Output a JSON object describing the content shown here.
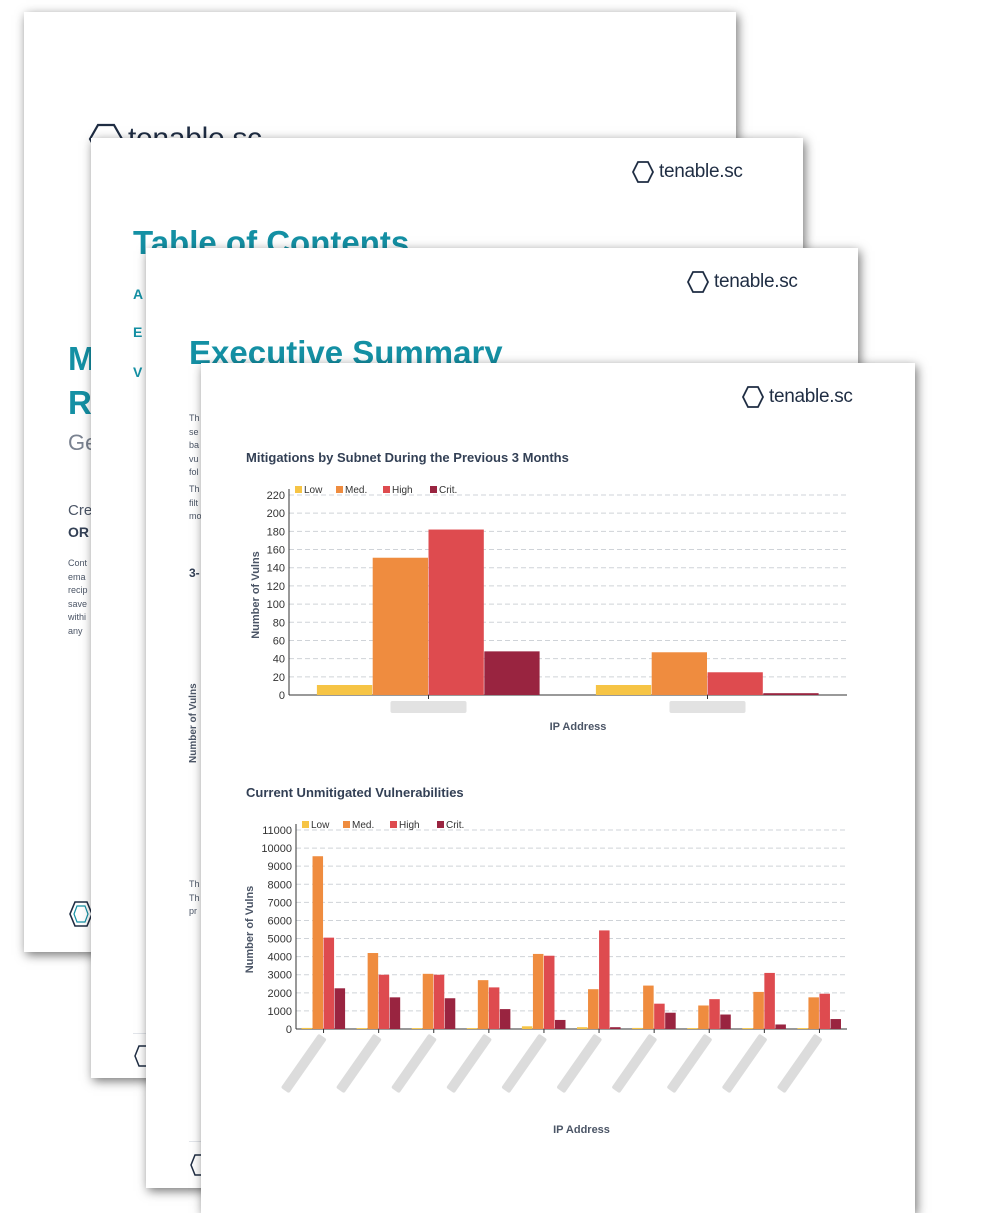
{
  "brand": {
    "logo_text": "tenable.sc",
    "accent": "#1490a4",
    "dark": "#1f2d43"
  },
  "page1": {
    "title_letters": [
      "M",
      "R"
    ],
    "subtitle": "Ge",
    "created_label": "Cre",
    "org_label": "OR",
    "body_lines": [
      "Cont",
      "ema",
      "recip",
      "save",
      "withi",
      "any"
    ]
  },
  "page2": {
    "title": "Table of Contents",
    "toc_letters": [
      "A",
      "E",
      "V"
    ]
  },
  "page3": {
    "title": "Executive Summary",
    "body_lines_a": [
      "Th",
      "se",
      "ba",
      "vu",
      "fol"
    ],
    "body_lines_b": [
      "Th",
      "filt",
      "mo"
    ],
    "section": "3-",
    "axis_label": "Number of Vulns",
    "body_lines_c": [
      "Th",
      "Th",
      "pr"
    ]
  },
  "chart_data": [
    {
      "type": "bar",
      "title": "Mitigations by Subnet During the Previous 3 Months",
      "xlabel": "IP Address",
      "ylabel": "Number of Vulns",
      "ylim": [
        0,
        220
      ],
      "yticks": [
        0,
        20,
        40,
        60,
        80,
        100,
        120,
        140,
        160,
        180,
        200,
        220
      ],
      "legend_position": "top-left",
      "categories": [
        "",
        ""
      ],
      "series": [
        {
          "name": "Low",
          "color": "#f6c445",
          "values": [
            11,
            11
          ]
        },
        {
          "name": "Med.",
          "color": "#ef8c3f",
          "values": [
            151,
            47
          ]
        },
        {
          "name": "High",
          "color": "#de4b4f",
          "values": [
            182,
            25
          ]
        },
        {
          "name": "Crit.",
          "color": "#992440",
          "values": [
            48,
            2
          ]
        }
      ]
    },
    {
      "type": "bar",
      "title": "Current Unmitigated Vulnerabilities",
      "xlabel": "IP Address",
      "ylabel": "Number of Vulns",
      "ylim": [
        0,
        11000
      ],
      "yticks": [
        0,
        1000,
        2000,
        3000,
        4000,
        5000,
        6000,
        7000,
        8000,
        9000,
        10000,
        11000
      ],
      "legend_position": "top-left",
      "categories": [
        "",
        "",
        "",
        "",
        "",
        "",
        "",
        "",
        "",
        ""
      ],
      "series": [
        {
          "name": "Low",
          "color": "#f6c445",
          "values": [
            60,
            50,
            50,
            50,
            150,
            100,
            60,
            50,
            50,
            50
          ]
        },
        {
          "name": "Med.",
          "color": "#ef8c3f",
          "values": [
            9550,
            4200,
            3050,
            2700,
            4150,
            2200,
            2400,
            1300,
            2050,
            1750
          ]
        },
        {
          "name": "High",
          "color": "#de4b4f",
          "values": [
            5050,
            3000,
            3000,
            2300,
            4050,
            5450,
            1400,
            1650,
            3100,
            1950
          ]
        },
        {
          "name": "Crit.",
          "color": "#992440",
          "values": [
            2250,
            1750,
            1700,
            1100,
            500,
            100,
            900,
            800,
            250,
            550
          ]
        }
      ]
    }
  ]
}
